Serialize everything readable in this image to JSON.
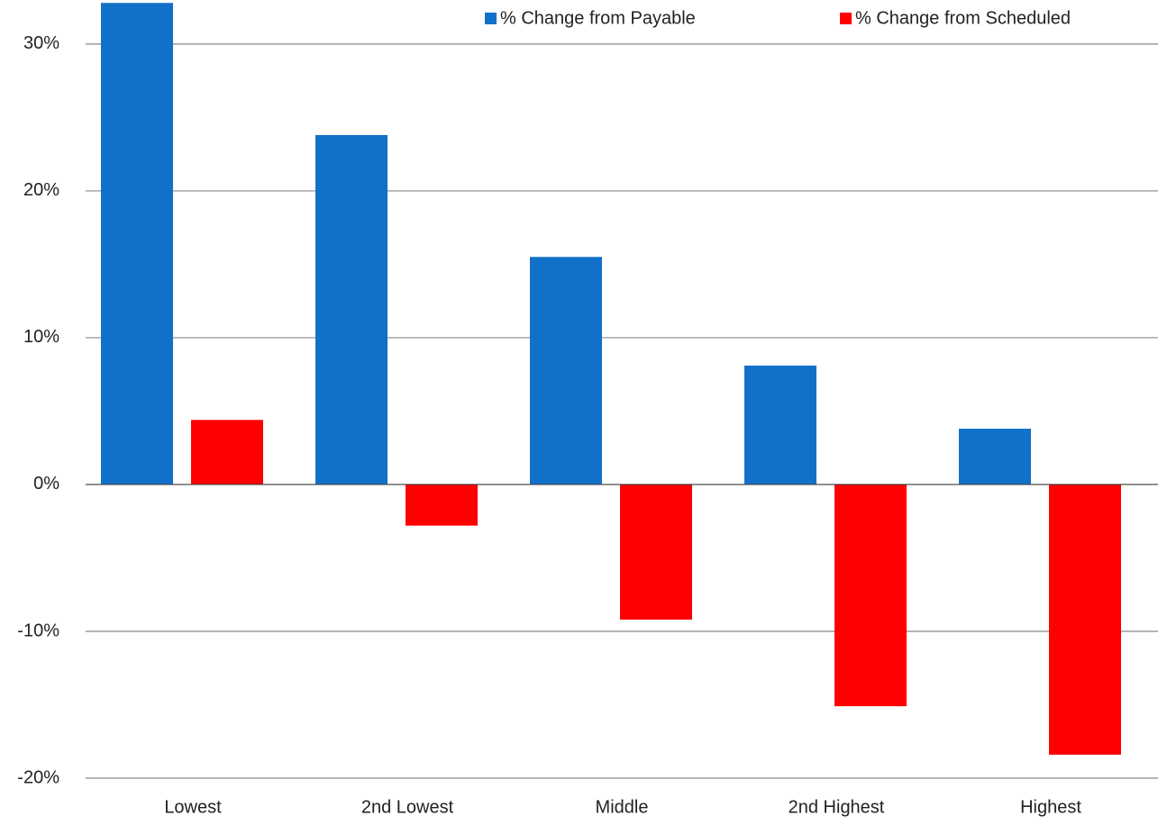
{
  "chart_data": {
    "type": "bar",
    "categories": [
      "Lowest",
      "2nd Lowest",
      "Middle",
      "2nd Highest",
      "Highest"
    ],
    "series": [
      {
        "name": "% Change from Payable",
        "color": "#1170c8",
        "values": [
          32.8,
          23.8,
          15.5,
          8.1,
          3.8
        ]
      },
      {
        "name": "% Change from Scheduled",
        "color": "#ff0000",
        "values": [
          4.4,
          -2.8,
          -9.2,
          -15.1,
          -18.4
        ]
      }
    ],
    "ylim": [
      -20,
      33
    ],
    "yticks": [
      {
        "value": -20,
        "label": "-20%"
      },
      {
        "value": -10,
        "label": "-10%"
      },
      {
        "value": 0,
        "label": "0%"
      },
      {
        "value": 10,
        "label": "10%"
      },
      {
        "value": 20,
        "label": "20%"
      },
      {
        "value": 30,
        "label": "30%"
      }
    ],
    "grid": true,
    "legend": "upper right"
  }
}
